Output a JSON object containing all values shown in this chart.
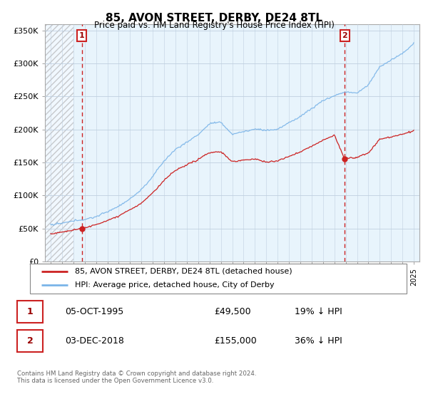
{
  "title": "85, AVON STREET, DERBY, DE24 8TL",
  "subtitle": "Price paid vs. HM Land Registry's House Price Index (HPI)",
  "ylabel_ticks": [
    "£0",
    "£50K",
    "£100K",
    "£150K",
    "£200K",
    "£250K",
    "£300K",
    "£350K"
  ],
  "ytick_values": [
    0,
    50000,
    100000,
    150000,
    200000,
    250000,
    300000,
    350000
  ],
  "ylim": [
    0,
    360000
  ],
  "xlim_start": 1992.5,
  "xlim_end": 2025.5,
  "sale1_date": 1995.75,
  "sale1_price": 49500,
  "sale2_date": 2018.92,
  "sale2_price": 155000,
  "hpi_color": "#7ab4e8",
  "price_color": "#cc2222",
  "dashed_color": "#cc2222",
  "legend_line1": "85, AVON STREET, DERBY, DE24 8TL (detached house)",
  "legend_line2": "HPI: Average price, detached house, City of Derby",
  "table_row1": [
    "1",
    "05-OCT-1995",
    "£49,500",
    "19% ↓ HPI"
  ],
  "table_row2": [
    "2",
    "03-DEC-2018",
    "£155,000",
    "36% ↓ HPI"
  ],
  "footer": "Contains HM Land Registry data © Crown copyright and database right 2024.\nThis data is licensed under the Open Government Licence v3.0.",
  "background_color": "#ffffff",
  "plot_bg_color": "#ddeeff"
}
